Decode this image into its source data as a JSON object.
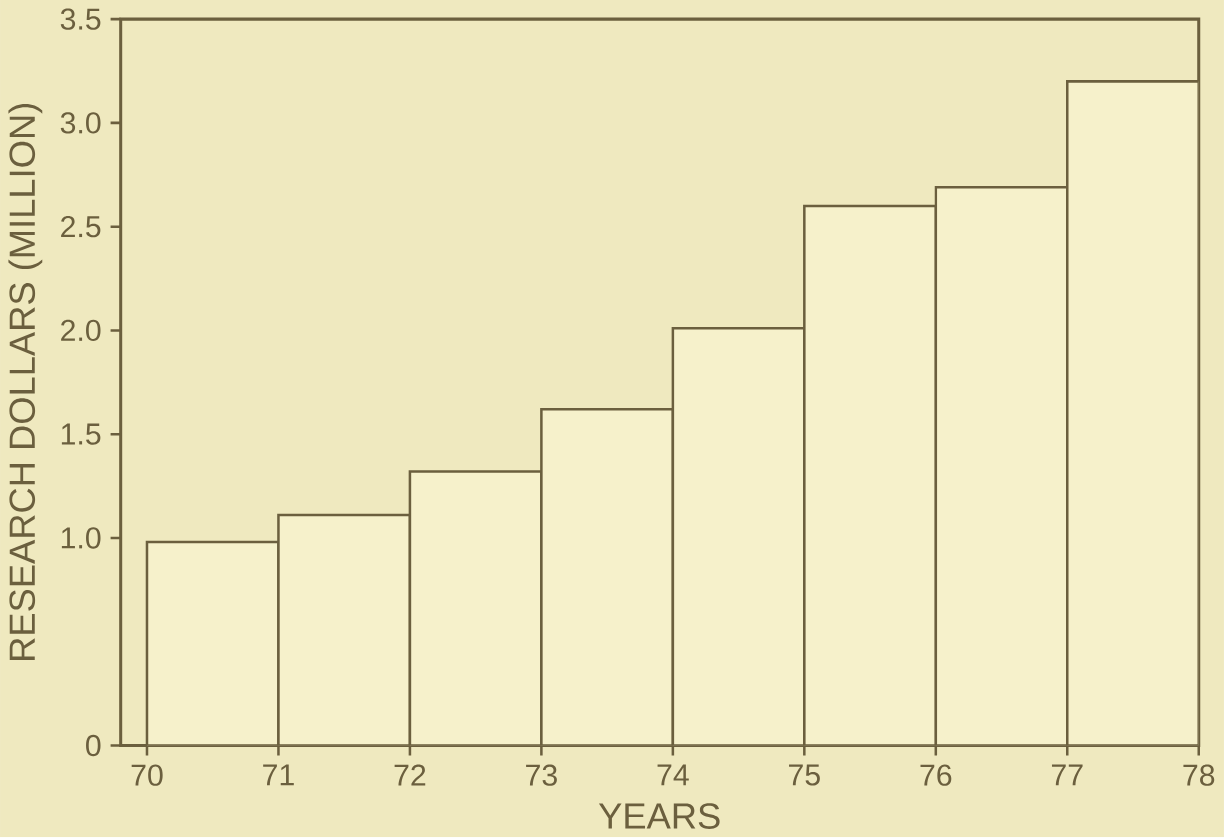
{
  "chart_data": {
    "type": "histogram",
    "xlabel": "YEARS",
    "ylabel": "RESEARCH DOLLARS (MILLION)",
    "bins": [
      70,
      71,
      72,
      73,
      74,
      75,
      76,
      77,
      78
    ],
    "values": [
      0.98,
      1.11,
      1.32,
      1.62,
      2.01,
      2.6,
      2.69,
      3.2
    ],
    "color": "#f6f1cb",
    "xlim": [
      69.8,
      78
    ],
    "xticks": [
      70,
      71,
      72,
      73,
      74,
      75,
      76,
      77,
      78
    ],
    "ylim": [
      0,
      3.5
    ],
    "yticks": [
      0,
      {
        "value": 1,
        "label": "1.0"
      },
      {
        "value": 1.5,
        "label": "1.5"
      },
      {
        "value": 2,
        "label": "2.0"
      },
      {
        "value": 2.5,
        "label": "2.5"
      },
      {
        "value": 3,
        "label": "3.0"
      },
      {
        "value": 3.5,
        "label": "3.5"
      }
    ]
  }
}
